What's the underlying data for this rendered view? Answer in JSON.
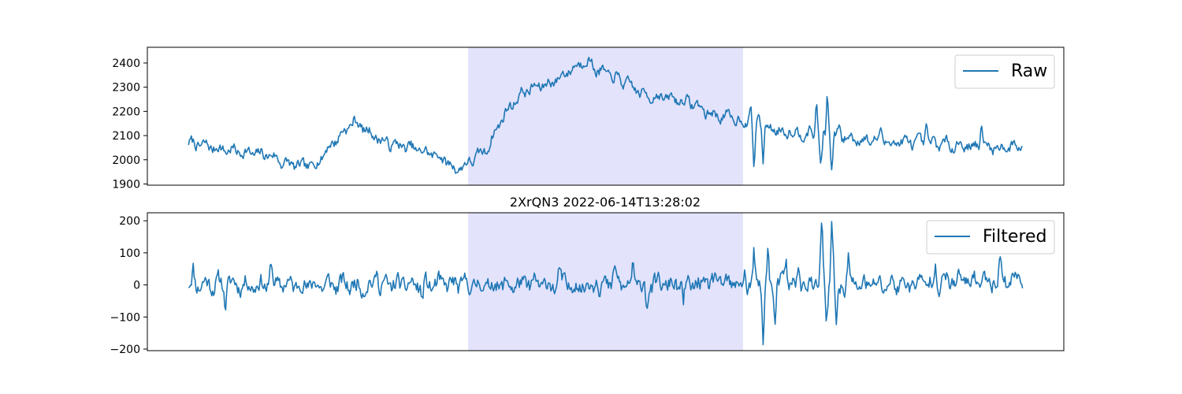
{
  "figure_title": "2XrQN3 2022-06-14T13:28:02",
  "colors": {
    "line": "#1f77b4",
    "highlight": "#e3e3fc",
    "axis": "#000000",
    "legend_border": "#cccccc"
  },
  "chart_data": [
    {
      "type": "line",
      "name": "raw-panel",
      "series": [
        {
          "name": "Raw",
          "color": "#1f77b4"
        }
      ],
      "legend": {
        "label": "Raw",
        "placement": "upper-right"
      },
      "x_axis": {
        "ticks_visible": false,
        "range": [
          0,
          1
        ]
      },
      "y_axis": {
        "range": [
          1895,
          2465
        ],
        "ticks": [
          1900,
          2000,
          2100,
          2200,
          2300,
          2400
        ]
      },
      "highlight_range_x": [
        0.35,
        0.65
      ],
      "grid": false,
      "shape": {
        "noise": 18,
        "seed": 7,
        "keypoints": [
          [
            0.045,
            2070
          ],
          [
            0.06,
            2060
          ],
          [
            0.08,
            2045
          ],
          [
            0.1,
            2035
          ],
          [
            0.115,
            2025
          ],
          [
            0.135,
            2020
          ],
          [
            0.15,
            1985
          ],
          [
            0.17,
            1970
          ],
          [
            0.185,
            1985
          ],
          [
            0.195,
            2040
          ],
          [
            0.21,
            2100
          ],
          [
            0.225,
            2160
          ],
          [
            0.24,
            2120
          ],
          [
            0.26,
            2070
          ],
          [
            0.28,
            2055
          ],
          [
            0.3,
            2035
          ],
          [
            0.315,
            2020
          ],
          [
            0.325,
            2000
          ],
          [
            0.335,
            1960
          ],
          [
            0.345,
            1975
          ],
          [
            0.355,
            2000
          ],
          [
            0.37,
            2040
          ],
          [
            0.38,
            2120
          ],
          [
            0.39,
            2190
          ],
          [
            0.4,
            2240
          ],
          [
            0.41,
            2280
          ],
          [
            0.42,
            2295
          ],
          [
            0.435,
            2310
          ],
          [
            0.45,
            2340
          ],
          [
            0.46,
            2370
          ],
          [
            0.47,
            2390
          ],
          [
            0.478,
            2420
          ],
          [
            0.49,
            2375
          ],
          [
            0.5,
            2355
          ],
          [
            0.51,
            2340
          ],
          [
            0.52,
            2320
          ],
          [
            0.53,
            2300
          ],
          [
            0.54,
            2270
          ],
          [
            0.55,
            2265
          ],
          [
            0.56,
            2260
          ],
          [
            0.575,
            2250
          ],
          [
            0.59,
            2240
          ],
          [
            0.6,
            2225
          ],
          [
            0.61,
            2195
          ],
          [
            0.62,
            2185
          ],
          [
            0.635,
            2175
          ],
          [
            0.65,
            2160
          ],
          [
            0.67,
            2145
          ],
          [
            0.69,
            2120
          ],
          [
            0.72,
            2110
          ],
          [
            0.75,
            2095
          ],
          [
            0.78,
            2085
          ],
          [
            0.81,
            2075
          ],
          [
            0.84,
            2070
          ],
          [
            0.87,
            2065
          ],
          [
            0.9,
            2060
          ],
          [
            0.93,
            2050
          ],
          [
            0.955,
            2060
          ]
        ],
        "spikes": [
          [
            0.658,
            2220
          ],
          [
            0.662,
            1935
          ],
          [
            0.667,
            2210
          ],
          [
            0.672,
            1990
          ],
          [
            0.7,
            2130
          ],
          [
            0.73,
            2250
          ],
          [
            0.735,
            1960
          ],
          [
            0.742,
            2280
          ],
          [
            0.747,
            1945
          ],
          [
            0.755,
            2150
          ],
          [
            0.8,
            2140
          ],
          [
            0.85,
            2145
          ],
          [
            0.91,
            2150
          ]
        ]
      }
    },
    {
      "type": "line",
      "name": "filtered-panel",
      "series": [
        {
          "name": "Filtered",
          "color": "#1f77b4"
        }
      ],
      "legend": {
        "label": "Filtered",
        "placement": "upper-right"
      },
      "x_axis": {
        "ticks_visible": false,
        "range": [
          0,
          1
        ]
      },
      "y_axis": {
        "range": [
          -205,
          225
        ],
        "ticks": [
          -200,
          -100,
          0,
          100,
          200
        ]
      },
      "highlight_range_x": [
        0.35,
        0.65
      ],
      "grid": false,
      "shape": {
        "noise": 22,
        "seed": 11,
        "keypoints": [
          [
            0.045,
            5
          ],
          [
            0.2,
            0
          ],
          [
            0.35,
            0
          ],
          [
            0.5,
            0
          ],
          [
            0.65,
            0
          ],
          [
            0.8,
            0
          ],
          [
            0.955,
            20
          ]
        ],
        "spikes": [
          [
            0.045,
            2
          ],
          [
            0.05,
            45
          ],
          [
            0.085,
            -60
          ],
          [
            0.135,
            70
          ],
          [
            0.25,
            55
          ],
          [
            0.3,
            -55
          ],
          [
            0.45,
            50
          ],
          [
            0.49,
            60
          ],
          [
            0.51,
            65
          ],
          [
            0.53,
            60
          ],
          [
            0.545,
            -75
          ],
          [
            0.585,
            -80
          ],
          [
            0.62,
            45
          ],
          [
            0.652,
            50
          ],
          [
            0.662,
            95
          ],
          [
            0.672,
            -180
          ],
          [
            0.677,
            110
          ],
          [
            0.685,
            -125
          ],
          [
            0.697,
            90
          ],
          [
            0.71,
            70
          ],
          [
            0.735,
            55
          ],
          [
            0.736,
            170
          ],
          [
            0.741,
            -150
          ],
          [
            0.747,
            207
          ],
          [
            0.752,
            -140
          ],
          [
            0.765,
            90
          ],
          [
            0.86,
            95
          ],
          [
            0.93,
            100
          ],
          [
            0.955,
            25
          ]
        ]
      }
    }
  ]
}
